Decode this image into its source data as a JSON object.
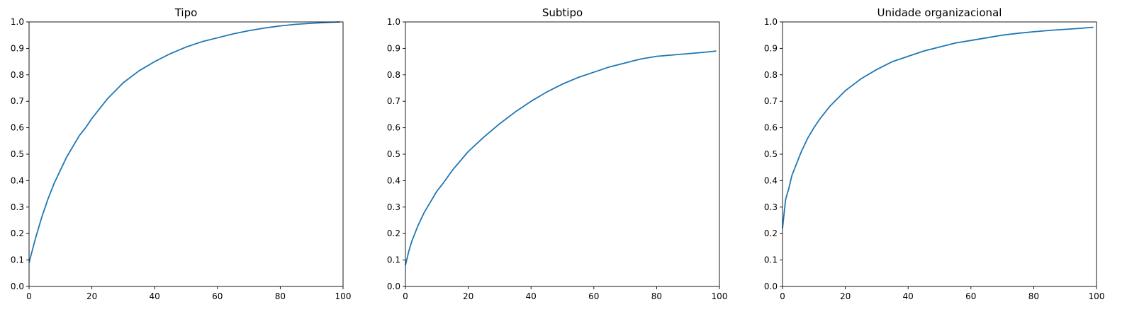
{
  "chart_data": [
    {
      "type": "line",
      "title": "Tipo",
      "xlabel": "",
      "ylabel": "",
      "xlim": [
        0,
        100
      ],
      "ylim": [
        0,
        1.0
      ],
      "xticks": [
        "0",
        "20",
        "40",
        "60",
        "80",
        "100"
      ],
      "yticks": [
        "0.0",
        "0.1",
        "0.2",
        "0.3",
        "0.4",
        "0.5",
        "0.6",
        "0.7",
        "0.8",
        "0.9",
        "1.0"
      ],
      "grid": false,
      "line_color": "#1f77b4",
      "series": [
        {
          "x": [
            0,
            2,
            4,
            6,
            8,
            10,
            12,
            14,
            16,
            18,
            20,
            25,
            30,
            35,
            40,
            45,
            50,
            55,
            60,
            65,
            70,
            75,
            80,
            85,
            90,
            95,
            99
          ],
          "y": [
            0.09,
            0.18,
            0.26,
            0.33,
            0.39,
            0.44,
            0.49,
            0.53,
            0.57,
            0.6,
            0.635,
            0.71,
            0.77,
            0.815,
            0.85,
            0.88,
            0.905,
            0.925,
            0.94,
            0.955,
            0.967,
            0.977,
            0.985,
            0.991,
            0.995,
            0.998,
            1.0
          ]
        }
      ]
    },
    {
      "type": "line",
      "title": "Subtipo",
      "xlabel": "",
      "ylabel": "",
      "xlim": [
        0,
        100
      ],
      "ylim": [
        0,
        1.0
      ],
      "xticks": [
        "0",
        "20",
        "40",
        "60",
        "80",
        "100"
      ],
      "yticks": [
        "0.0",
        "0.1",
        "0.2",
        "0.3",
        "0.4",
        "0.5",
        "0.6",
        "0.7",
        "0.8",
        "0.9",
        "1.0"
      ],
      "grid": false,
      "line_color": "#1f77b4",
      "series": [
        {
          "x": [
            0,
            1,
            2,
            4,
            6,
            8,
            10,
            12,
            15,
            20,
            25,
            30,
            35,
            40,
            45,
            50,
            55,
            60,
            65,
            70,
            75,
            80,
            85,
            90,
            95,
            99
          ],
          "y": [
            0.08,
            0.13,
            0.17,
            0.23,
            0.28,
            0.32,
            0.36,
            0.39,
            0.44,
            0.51,
            0.565,
            0.615,
            0.66,
            0.7,
            0.735,
            0.765,
            0.79,
            0.81,
            0.83,
            0.845,
            0.86,
            0.87,
            0.875,
            0.88,
            0.885,
            0.89
          ]
        }
      ]
    },
    {
      "type": "line",
      "title": "Unidade organizacional",
      "xlabel": "",
      "ylabel": "",
      "xlim": [
        0,
        100
      ],
      "ylim": [
        0,
        1.0
      ],
      "xticks": [
        "0",
        "20",
        "40",
        "60",
        "80",
        "100"
      ],
      "yticks": [
        "0.0",
        "0.1",
        "0.2",
        "0.3",
        "0.4",
        "0.5",
        "0.6",
        "0.7",
        "0.8",
        "0.9",
        "1.0"
      ],
      "grid": false,
      "line_color": "#1f77b4",
      "series": [
        {
          "x": [
            0,
            1,
            2,
            3,
            4,
            6,
            8,
            10,
            12,
            15,
            20,
            25,
            30,
            35,
            40,
            45,
            50,
            55,
            60,
            65,
            70,
            75,
            80,
            85,
            90,
            95,
            99
          ],
          "y": [
            0.22,
            0.33,
            0.37,
            0.42,
            0.45,
            0.51,
            0.56,
            0.6,
            0.635,
            0.68,
            0.74,
            0.785,
            0.82,
            0.85,
            0.87,
            0.89,
            0.905,
            0.92,
            0.93,
            0.94,
            0.95,
            0.957,
            0.963,
            0.968,
            0.972,
            0.976,
            0.98
          ]
        }
      ]
    }
  ]
}
